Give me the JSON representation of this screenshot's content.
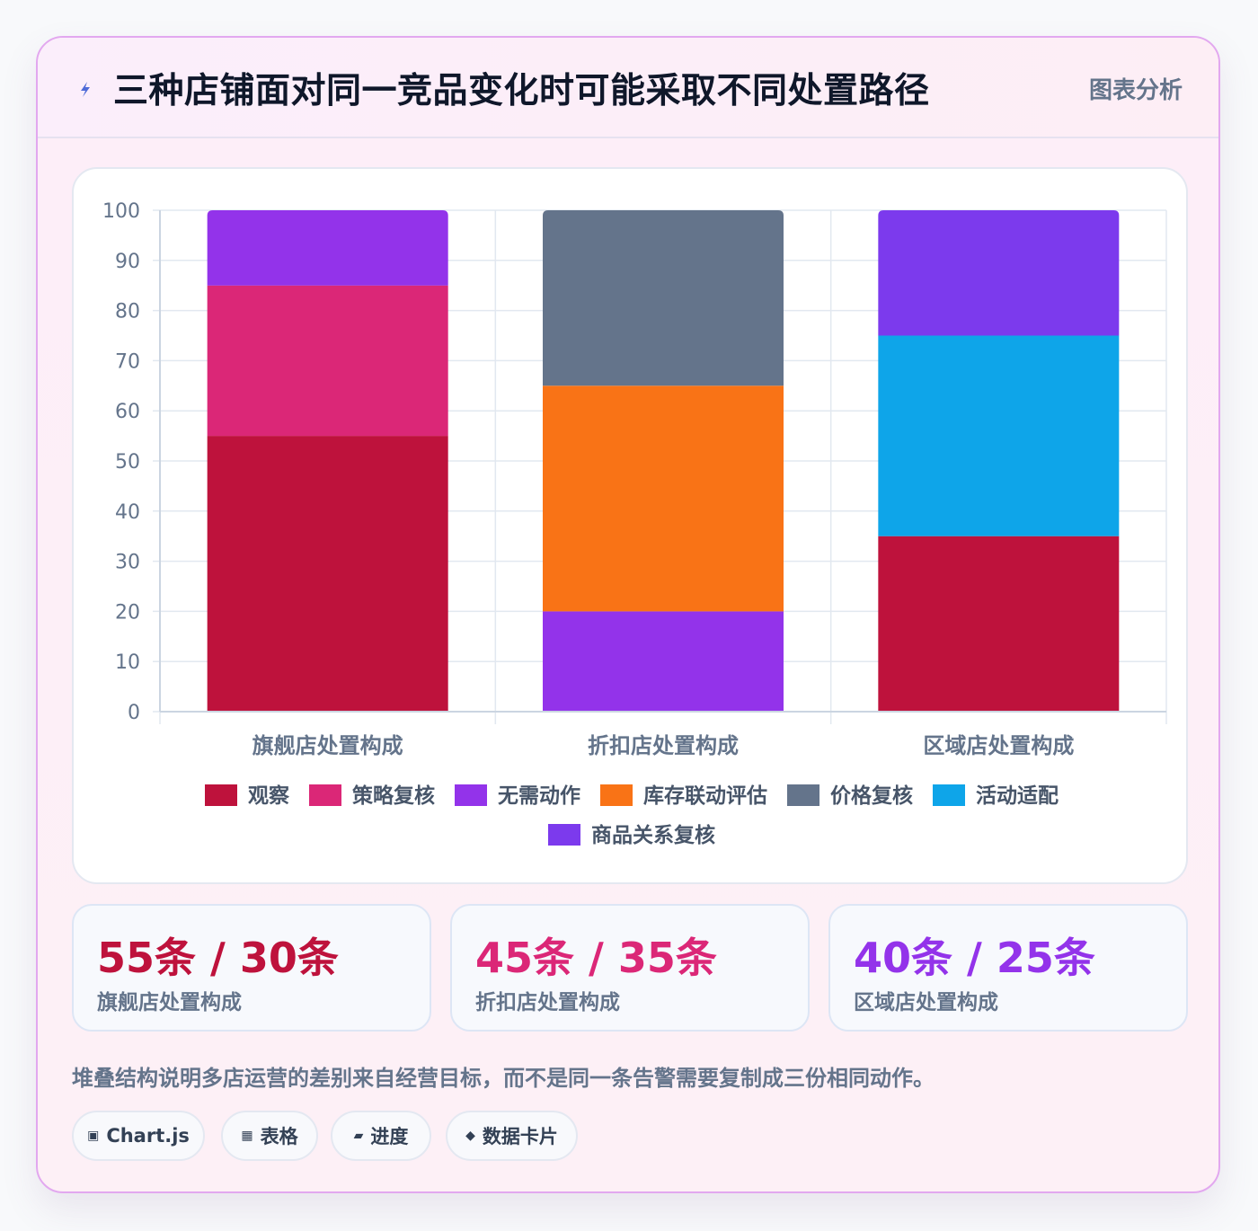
{
  "header": {
    "title": "三种店铺面对同一竞品变化时可能采取不同处置路径",
    "tag": "图表分析",
    "icon": "lightning-icon"
  },
  "chart_data": {
    "type": "bar",
    "stacked": true,
    "categories": [
      "旗舰店处置构成",
      "折扣店处置构成",
      "区域店处置构成"
    ],
    "ylim": [
      0,
      100
    ],
    "yticks": [
      0,
      10,
      20,
      30,
      40,
      50,
      60,
      70,
      80,
      90,
      100
    ],
    "grid": true,
    "legend_position": "bottom",
    "series": [
      {
        "name": "观察",
        "color": "#be123c",
        "values": [
          55,
          0,
          35
        ]
      },
      {
        "name": "策略复核",
        "color": "#db2777",
        "values": [
          30,
          0,
          0
        ]
      },
      {
        "name": "无需动作",
        "color": "#9333ea",
        "values": [
          15,
          20,
          0
        ]
      },
      {
        "name": "库存联动评估",
        "color": "#f97316",
        "values": [
          0,
          45,
          0
        ]
      },
      {
        "name": "价格复核",
        "color": "#64748b",
        "values": [
          0,
          35,
          0
        ]
      },
      {
        "name": "活动适配",
        "color": "#0ea5e9",
        "values": [
          0,
          0,
          40
        ]
      },
      {
        "name": "商品关系复核",
        "color": "#7c3aed",
        "values": [
          0,
          0,
          25
        ]
      }
    ]
  },
  "stats": [
    {
      "value": "55条 / 30条",
      "label": "旗舰店处置构成",
      "color": "#be123c"
    },
    {
      "value": "45条 / 35条",
      "label": "折扣店处置构成",
      "color": "#db2777"
    },
    {
      "value": "40条 / 25条",
      "label": "区域店处置构成",
      "color": "#9333ea"
    }
  ],
  "description": "堆叠结构说明多店运营的差别来自经营目标，而不是同一条告警需要复制成三份相同动作。",
  "chips": [
    {
      "icon": "▣",
      "icon_name": "chart-icon",
      "label": "Chart.js"
    },
    {
      "icon": "▦",
      "icon_name": "table-icon",
      "label": "表格"
    },
    {
      "icon": "▰",
      "icon_name": "progress-icon",
      "label": "进度"
    },
    {
      "icon": "◆",
      "icon_name": "card-icon",
      "label": "数据卡片"
    }
  ]
}
